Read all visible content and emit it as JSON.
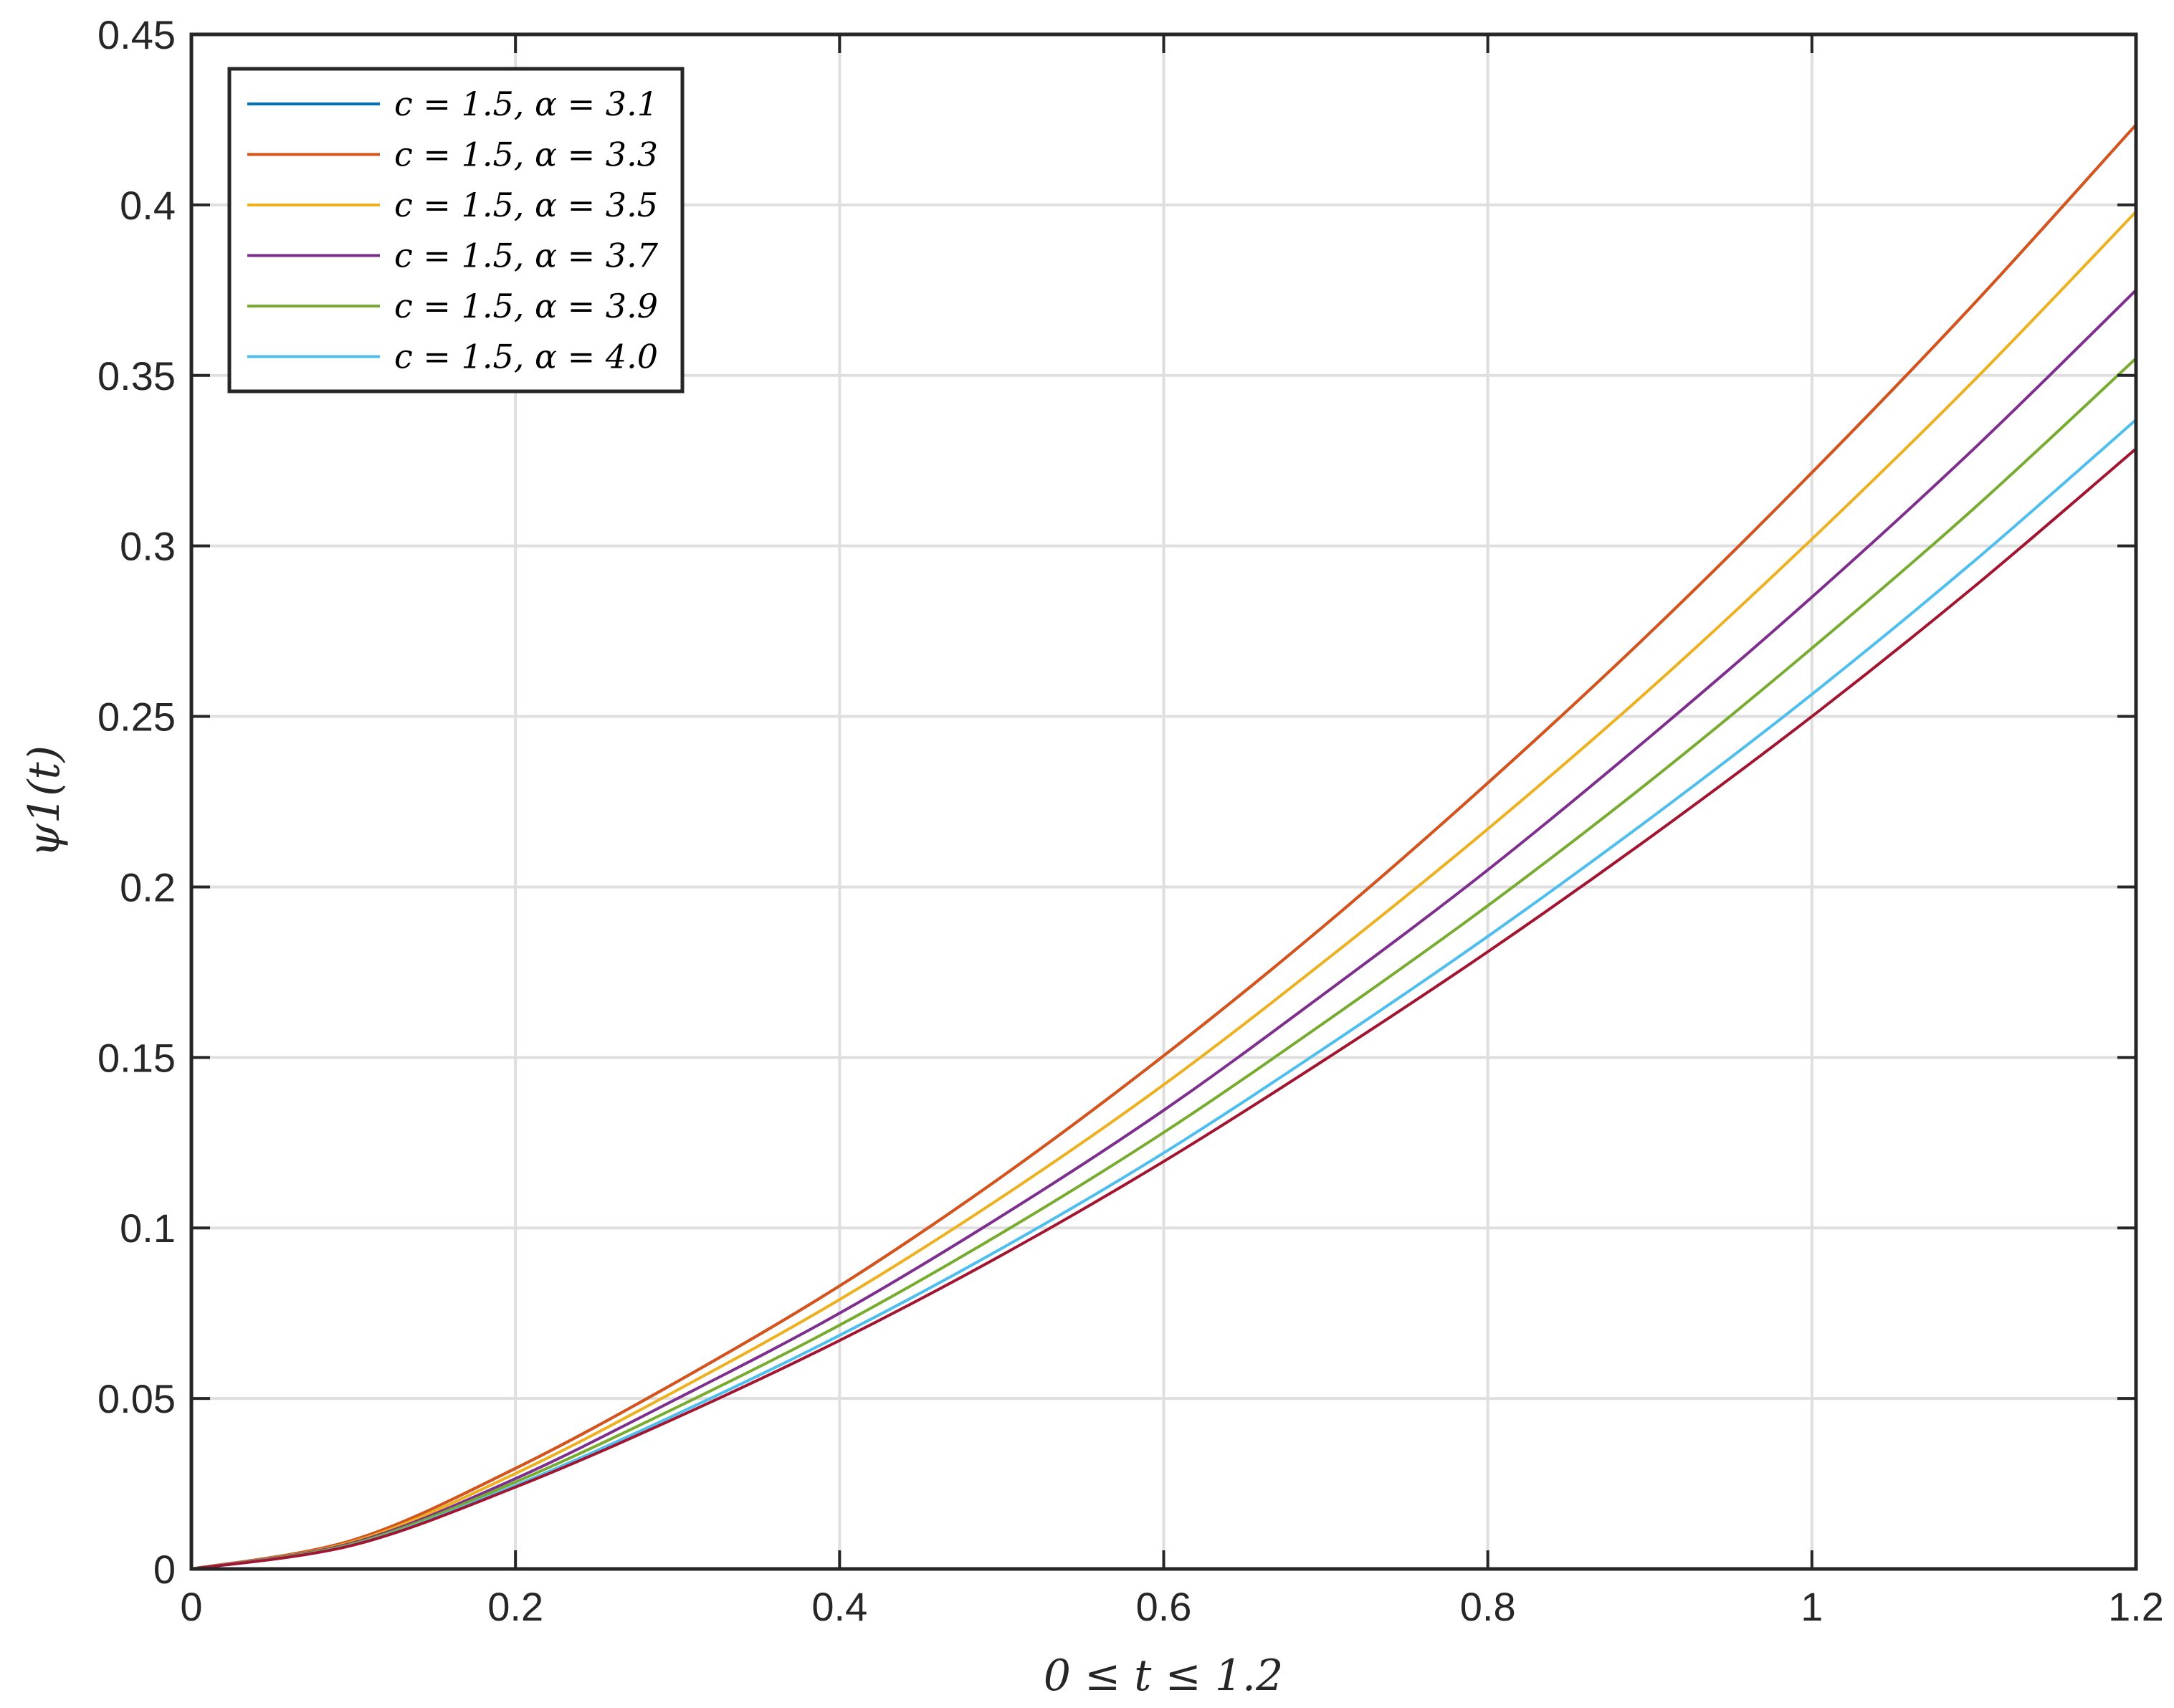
{
  "chart_data": {
    "type": "line",
    "xlabel": "0 ≤ t ≤ 1.2",
    "ylabel": "ψ1(t)",
    "xlim": [
      0,
      1.2
    ],
    "ylim": [
      0,
      0.45
    ],
    "xticks": [
      0,
      0.2,
      0.4,
      0.6,
      0.8,
      1,
      1.2
    ],
    "xtick_labels": [
      "0",
      "0.2",
      "0.4",
      "0.6",
      "0.8",
      "1",
      "1.2"
    ],
    "yticks": [
      0,
      0.05,
      0.1,
      0.15,
      0.2,
      0.25,
      0.3,
      0.35,
      0.4,
      0.45
    ],
    "ytick_labels": [
      "0",
      "0.05",
      "0.1",
      "0.15",
      "0.2",
      "0.25",
      "0.3",
      "0.35",
      "0.4",
      "0.45"
    ],
    "grid": true,
    "legend_position": "top-left",
    "x": [
      0,
      0.1,
      0.2,
      0.3,
      0.4,
      0.5,
      0.6,
      0.7,
      0.8,
      0.9,
      1.0,
      1.1,
      1.2
    ],
    "series": [
      {
        "name": "c = 1.5, α = 3.1",
        "color": "#0072BD",
        "values": [
          0,
          0.0085,
          0.0295,
          0.055,
          0.083,
          0.115,
          0.1505,
          0.189,
          0.2305,
          0.2745,
          0.3215,
          0.371,
          0.4235
        ]
      },
      {
        "name": "c = 1.5, α = 3.3",
        "color": "#D95319",
        "values": [
          0,
          0.0085,
          0.0295,
          0.055,
          0.083,
          0.115,
          0.1505,
          0.189,
          0.2305,
          0.2745,
          0.3215,
          0.371,
          0.4235
        ]
      },
      {
        "name": "c = 1.5, α = 3.5",
        "color": "#EDB120",
        "values": [
          0,
          0.008,
          0.028,
          0.0525,
          0.079,
          0.109,
          0.142,
          0.1785,
          0.217,
          0.258,
          0.302,
          0.3485,
          0.398
        ]
      },
      {
        "name": "c = 1.5, α = 3.7",
        "color": "#7E2F8E",
        "values": [
          0,
          0.0077,
          0.0265,
          0.05,
          0.075,
          0.1035,
          0.1345,
          0.169,
          0.205,
          0.244,
          0.285,
          0.3285,
          0.375
        ]
      },
      {
        "name": "c = 1.5, α = 3.9",
        "color": "#77AC30",
        "values": [
          0,
          0.0074,
          0.0255,
          0.0475,
          0.0715,
          0.0985,
          0.128,
          0.1605,
          0.1945,
          0.231,
          0.27,
          0.311,
          0.355
        ]
      },
      {
        "name": "c = 1.5, α = 4.0",
        "color": "#4DBEEE",
        "values": [
          0,
          0.0071,
          0.0245,
          0.0455,
          0.0685,
          0.094,
          0.122,
          0.153,
          0.1855,
          0.22,
          0.2565,
          0.2955,
          0.337
        ]
      },
      {
        "color": "#A2142F",
        "values": [
          0,
          0.007,
          0.024,
          0.0445,
          0.067,
          0.092,
          0.1195,
          0.1495,
          0.181,
          0.2145,
          0.25,
          0.288,
          0.3285
        ]
      }
    ]
  }
}
